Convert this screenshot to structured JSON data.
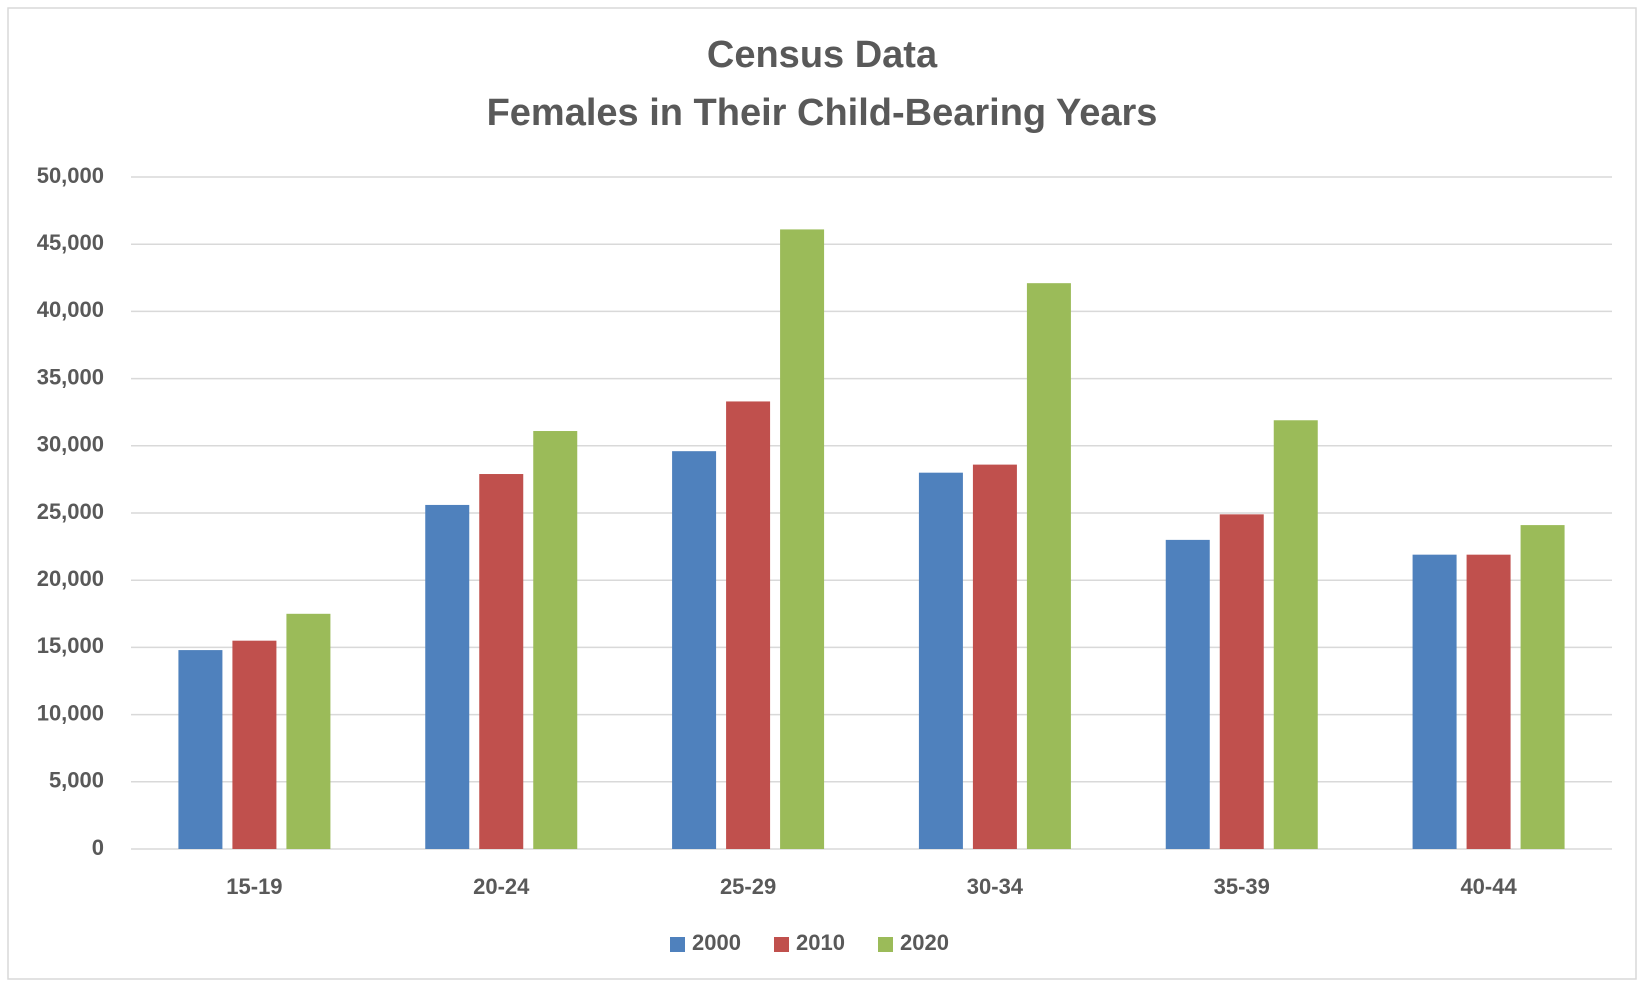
{
  "chart_data": {
    "type": "bar",
    "title": [
      "Census Data",
      "Females in Their Child-Bearing Years"
    ],
    "categories": [
      "15-19",
      "20-24",
      "25-29",
      "30-34",
      "35-39",
      "40-44"
    ],
    "series": [
      {
        "name": "2000",
        "color": "#4f81bd",
        "values": [
          14800,
          25600,
          29600,
          28000,
          23000,
          21900
        ]
      },
      {
        "name": "2010",
        "color": "#c0504d",
        "values": [
          15500,
          27900,
          33300,
          28600,
          24900,
          21900
        ]
      },
      {
        "name": "2020",
        "color": "#9bbb59",
        "values": [
          17500,
          31100,
          46100,
          42100,
          31900,
          24100
        ]
      }
    ],
    "ylim": [
      0,
      50000
    ],
    "yticks": [
      0,
      {
        "value": 5000,
        "label": "5,000"
      },
      {
        "value": 10000,
        "label": "10,000"
      },
      {
        "value": 15000,
        "label": "15,000"
      },
      {
        "value": 20000,
        "label": "20,000"
      },
      {
        "value": 25000,
        "label": "25,000"
      },
      {
        "value": 30000,
        "label": "30,000"
      },
      {
        "value": 35000,
        "label": "35,000"
      },
      {
        "value": 40000,
        "label": "40,000"
      },
      {
        "value": 45000,
        "label": "45,000"
      },
      {
        "value": 50000,
        "label": "50,000"
      }
    ],
    "grid": true,
    "legend": "bottom"
  }
}
